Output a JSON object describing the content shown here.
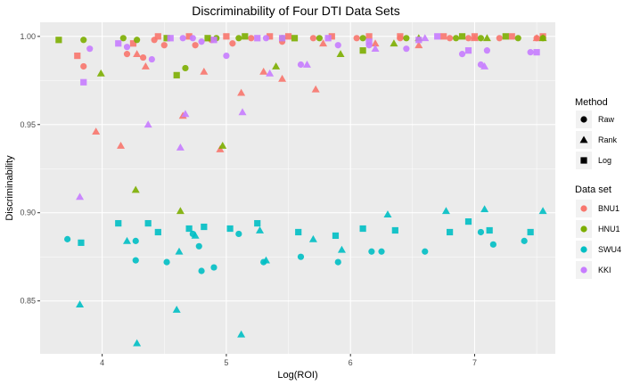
{
  "chart_data": {
    "type": "scatter",
    "title": "Discriminability of Four DTI Data Sets",
    "xlabel": "Log(ROI)",
    "ylabel": "Discriminability",
    "xlim": [
      3.5,
      7.65
    ],
    "ylim": [
      0.82,
      1.008
    ],
    "x_ticks": [
      4,
      5,
      6,
      7
    ],
    "y_ticks": [
      0.85,
      0.9,
      0.95,
      1.0
    ],
    "x_tick_labels": [
      "4",
      "5",
      "6",
      "7"
    ],
    "y_tick_labels": [
      "0.85",
      "0.90",
      "0.95",
      "1.00"
    ],
    "grid": true,
    "legend_placement": "right",
    "legends": {
      "method": {
        "title": "Method",
        "items": [
          {
            "label": "Raw",
            "shape": "circle"
          },
          {
            "label": "Rank",
            "shape": "triangle"
          },
          {
            "label": "Log",
            "shape": "square"
          }
        ]
      },
      "dataset": {
        "title": "Data set",
        "items": [
          {
            "label": "BNU1",
            "color": "#F8766D"
          },
          {
            "label": "HNU1",
            "color": "#7CAE00"
          },
          {
            "label": "SWU4",
            "color": "#00BFC4"
          },
          {
            "label": "KKI",
            "color": "#C77CFF"
          }
        ]
      }
    },
    "series": [
      {
        "dataset": "BNU1",
        "method": "Raw",
        "points": [
          [
            3.85,
            0.983
          ],
          [
            4.2,
            0.99
          ],
          [
            4.33,
            0.988
          ],
          [
            4.42,
            0.998
          ],
          [
            4.5,
            0.995
          ],
          [
            4.75,
            0.995
          ],
          [
            4.88,
            0.998
          ],
          [
            5.05,
            0.996
          ],
          [
            5.2,
            0.999
          ],
          [
            5.45,
            0.997
          ],
          [
            5.7,
            0.999
          ],
          [
            6.05,
            0.999
          ],
          [
            6.4,
            0.999
          ],
          [
            6.8,
            0.999
          ],
          [
            6.95,
            0.999
          ],
          [
            7.2,
            0.999
          ],
          [
            7.5,
            0.999
          ]
        ]
      },
      {
        "dataset": "BNU1",
        "method": "Rank",
        "points": [
          [
            3.95,
            0.946
          ],
          [
            4.15,
            0.938
          ],
          [
            4.28,
            0.99
          ],
          [
            4.35,
            0.983
          ],
          [
            4.65,
            0.955
          ],
          [
            4.82,
            0.98
          ],
          [
            4.95,
            0.936
          ],
          [
            5.12,
            0.968
          ],
          [
            5.3,
            0.98
          ],
          [
            5.45,
            0.976
          ],
          [
            5.72,
            0.97
          ],
          [
            5.78,
            0.996
          ],
          [
            6.2,
            0.996
          ],
          [
            6.55,
            0.995
          ],
          [
            7.0,
            0.999
          ],
          [
            7.5,
            0.999
          ]
        ]
      },
      {
        "dataset": "BNU1",
        "method": "Log",
        "points": [
          [
            3.8,
            0.989
          ],
          [
            4.25,
            0.996
          ],
          [
            4.45,
            1.0
          ],
          [
            4.7,
            1.0
          ],
          [
            5.0,
            1.0
          ],
          [
            5.35,
            1.0
          ],
          [
            5.5,
            1.0
          ],
          [
            5.85,
            1.0
          ],
          [
            6.15,
            1.0
          ],
          [
            6.4,
            1.0
          ],
          [
            6.75,
            1.0
          ],
          [
            7.0,
            1.0
          ],
          [
            7.3,
            1.0
          ],
          [
            7.55,
            1.0
          ]
        ]
      },
      {
        "dataset": "HNU1",
        "method": "Raw",
        "points": [
          [
            3.85,
            0.998
          ],
          [
            4.17,
            0.999
          ],
          [
            4.28,
            0.998
          ],
          [
            4.67,
            0.982
          ],
          [
            4.92,
            0.999
          ],
          [
            5.1,
            0.999
          ],
          [
            5.45,
            0.999
          ],
          [
            5.75,
            0.999
          ],
          [
            6.1,
            0.999
          ],
          [
            6.45,
            0.999
          ],
          [
            6.85,
            0.999
          ],
          [
            7.05,
            0.999
          ],
          [
            7.35,
            0.999
          ],
          [
            7.55,
            0.999
          ]
        ]
      },
      {
        "dataset": "HNU1",
        "method": "Rank",
        "points": [
          [
            3.99,
            0.979
          ],
          [
            4.27,
            0.913
          ],
          [
            4.63,
            0.901
          ],
          [
            4.97,
            0.938
          ],
          [
            5.4,
            0.983
          ],
          [
            5.92,
            0.99
          ],
          [
            6.35,
            0.996
          ],
          [
            6.55,
            0.999
          ],
          [
            7.1,
            0.999
          ],
          [
            7.55,
            0.999
          ]
        ]
      },
      {
        "dataset": "HNU1",
        "method": "Log",
        "points": [
          [
            3.65,
            0.998
          ],
          [
            4.52,
            0.999
          ],
          [
            4.6,
            0.978
          ],
          [
            4.85,
            0.999
          ],
          [
            5.15,
            1.0
          ],
          [
            5.55,
            0.999
          ],
          [
            6.1,
            0.992
          ],
          [
            6.9,
            1.0
          ],
          [
            7.25,
            1.0
          ]
        ]
      },
      {
        "dataset": "SWU4",
        "method": "Raw",
        "points": [
          [
            3.72,
            0.885
          ],
          [
            4.27,
            0.884
          ],
          [
            4.27,
            0.873
          ],
          [
            4.52,
            0.872
          ],
          [
            4.73,
            0.888
          ],
          [
            4.78,
            0.881
          ],
          [
            4.8,
            0.867
          ],
          [
            4.9,
            0.869
          ],
          [
            5.1,
            0.888
          ],
          [
            5.3,
            0.872
          ],
          [
            5.6,
            0.875
          ],
          [
            5.9,
            0.872
          ],
          [
            6.17,
            0.878
          ],
          [
            6.25,
            0.878
          ],
          [
            6.6,
            0.878
          ],
          [
            7.05,
            0.889
          ],
          [
            7.15,
            0.882
          ],
          [
            7.4,
            0.884
          ]
        ]
      },
      {
        "dataset": "SWU4",
        "method": "Rank",
        "points": [
          [
            3.82,
            0.848
          ],
          [
            4.2,
            0.884
          ],
          [
            4.28,
            0.826
          ],
          [
            4.6,
            0.845
          ],
          [
            4.62,
            0.878
          ],
          [
            4.75,
            0.887
          ],
          [
            5.12,
            0.831
          ],
          [
            5.27,
            0.89
          ],
          [
            5.32,
            0.873
          ],
          [
            5.7,
            0.885
          ],
          [
            5.93,
            0.879
          ],
          [
            6.3,
            0.899
          ],
          [
            6.77,
            0.901
          ],
          [
            7.08,
            0.902
          ],
          [
            7.55,
            0.901
          ]
        ]
      },
      {
        "dataset": "SWU4",
        "method": "Log",
        "points": [
          [
            3.83,
            0.883
          ],
          [
            4.13,
            0.894
          ],
          [
            4.37,
            0.894
          ],
          [
            4.45,
            0.889
          ],
          [
            4.7,
            0.891
          ],
          [
            4.82,
            0.892
          ],
          [
            5.03,
            0.891
          ],
          [
            5.25,
            0.894
          ],
          [
            5.58,
            0.889
          ],
          [
            5.88,
            0.887
          ],
          [
            6.1,
            0.891
          ],
          [
            6.36,
            0.89
          ],
          [
            6.8,
            0.889
          ],
          [
            6.95,
            0.895
          ],
          [
            7.12,
            0.89
          ],
          [
            7.45,
            0.889
          ]
        ]
      },
      {
        "dataset": "KKI",
        "method": "Raw",
        "points": [
          [
            3.9,
            0.993
          ],
          [
            4.2,
            0.994
          ],
          [
            4.4,
            0.987
          ],
          [
            4.65,
            0.999
          ],
          [
            4.73,
            0.999
          ],
          [
            4.8,
            0.997
          ],
          [
            5.0,
            0.989
          ],
          [
            5.32,
            0.999
          ],
          [
            5.6,
            0.984
          ],
          [
            5.9,
            0.995
          ],
          [
            6.15,
            0.995
          ],
          [
            6.45,
            0.993
          ],
          [
            6.9,
            0.99
          ],
          [
            7.05,
            0.984
          ],
          [
            7.1,
            0.992
          ],
          [
            7.45,
            0.991
          ]
        ]
      },
      {
        "dataset": "KKI",
        "method": "Rank",
        "points": [
          [
            3.82,
            0.909
          ],
          [
            4.37,
            0.95
          ],
          [
            4.63,
            0.937
          ],
          [
            4.67,
            0.956
          ],
          [
            5.13,
            0.957
          ],
          [
            5.35,
            0.979
          ],
          [
            5.65,
            0.984
          ],
          [
            6.2,
            0.993
          ],
          [
            6.6,
            0.999
          ],
          [
            7.08,
            0.983
          ]
        ]
      },
      {
        "dataset": "KKI",
        "method": "Log",
        "points": [
          [
            3.85,
            0.974
          ],
          [
            4.13,
            0.996
          ],
          [
            4.55,
            0.999
          ],
          [
            4.9,
            0.998
          ],
          [
            5.25,
            0.999
          ],
          [
            5.45,
            0.999
          ],
          [
            5.82,
            0.999
          ],
          [
            6.15,
            0.997
          ],
          [
            6.55,
            0.998
          ],
          [
            6.7,
            1.0
          ],
          [
            6.95,
            0.992
          ],
          [
            7.5,
            0.991
          ]
        ]
      }
    ]
  }
}
